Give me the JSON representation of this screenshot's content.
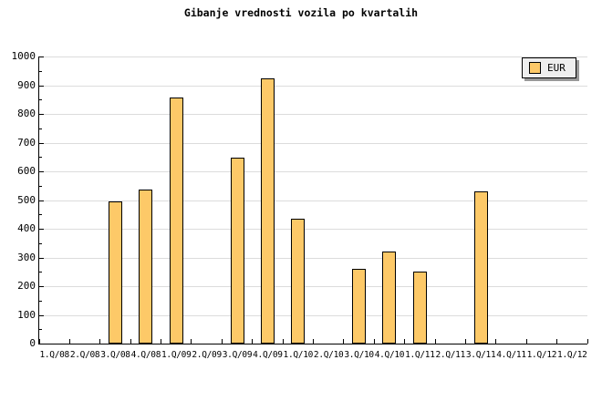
{
  "title": "Gibanje vrednosti vozila po kvartalih",
  "legend": {
    "label": "EUR"
  },
  "colors": {
    "background": "#FFFFFF",
    "text": "#000000",
    "axis": "#000000",
    "grid": "#DCDCDC",
    "bar_fill": "#FDC968",
    "bar_border": "#000000",
    "legend_bg": "#EEEEEE",
    "legend_border": "#000000",
    "legend_shadow": "#999999"
  },
  "chart_data": {
    "type": "bar",
    "title": "Gibanje vrednosti vozila po kvartalih",
    "categories": [
      "1.Q/08",
      "2.Q/08",
      "3.Q/08",
      "4.Q/08",
      "1.Q/09",
      "2.Q/09",
      "3.Q/09",
      "4.Q/09",
      "1.Q/10",
      "2.Q/10",
      "3.Q/10",
      "4.Q/10",
      "1.Q/11",
      "2.Q/11",
      "3.Q/11",
      "4.Q/11",
      "1.Q/12",
      "1.Q/12"
    ],
    "series": [
      {
        "name": "EUR",
        "values": [
          null,
          null,
          495,
          535,
          858,
          null,
          648,
          924,
          434,
          null,
          259,
          322,
          251,
          null,
          529,
          null,
          null,
          null
        ]
      }
    ],
    "xlabel": "",
    "ylabel": "",
    "ylim": [
      0,
      1000
    ],
    "ytick_step": 100,
    "ytick_minor_step": 50,
    "ytick_labels": [
      "0",
      "100",
      "200",
      "300",
      "400",
      "500",
      "600",
      "700",
      "800",
      "900",
      "1000"
    ],
    "grid": "horizontal-major",
    "legend_position": "top-right"
  }
}
